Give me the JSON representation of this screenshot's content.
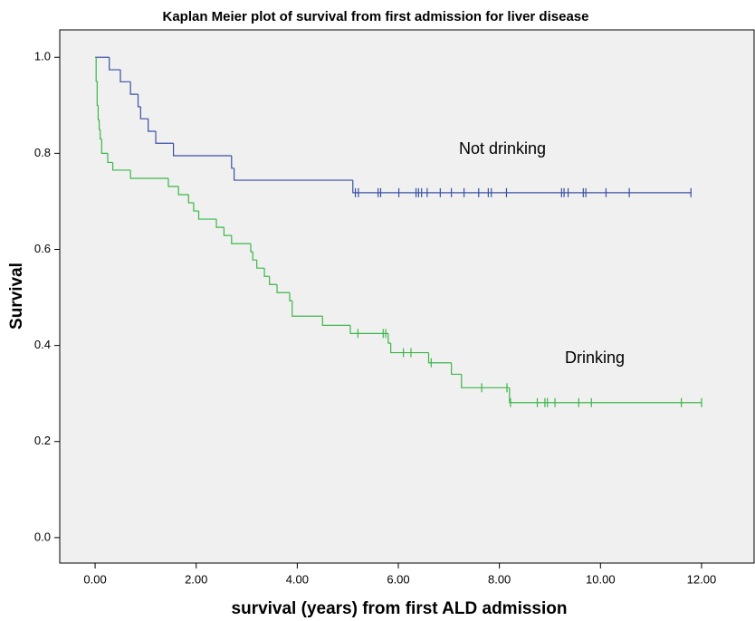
{
  "chart_data": {
    "type": "kaplan-meier",
    "title": "Kaplan Meier plot of survival from first admission for liver disease",
    "x_label": "survival (years) from first ALD admission",
    "y_label": "Survival",
    "xlim": [
      -0.7,
      13.04
    ],
    "ylim": [
      -0.053,
      1.057
    ],
    "xticks": [
      {
        "value": 0,
        "label": "0.00"
      },
      {
        "value": 2,
        "label": "2.00"
      },
      {
        "value": 4,
        "label": "4.00"
      },
      {
        "value": 6,
        "label": "6.00"
      },
      {
        "value": 8,
        "label": "8.00"
      },
      {
        "value": 10,
        "label": "10.00"
      },
      {
        "value": 12,
        "label": "12.00"
      }
    ],
    "yticks": [
      {
        "value": 0,
        "label": "0.0"
      },
      {
        "value": 0.2,
        "label": "0.2"
      },
      {
        "value": 0.4,
        "label": "0.4"
      },
      {
        "value": 0.6,
        "label": "0.6"
      },
      {
        "value": 0.8,
        "label": "0.8"
      },
      {
        "value": 1,
        "label": "1.0"
      }
    ],
    "series": [
      {
        "name": "Not drinking",
        "color": "#3a4fa3",
        "x": [
          0,
          0.28,
          0.5,
          0.7,
          0.85,
          0.9,
          1.05,
          1.2,
          1.55,
          2.7,
          2.75,
          5.1,
          11.8
        ],
        "values": [
          1,
          0.974,
          0.949,
          0.923,
          0.897,
          0.872,
          0.846,
          0.821,
          0.795,
          0.769,
          0.744,
          0.718,
          0.718
        ],
        "censor_x": [
          5.15,
          5.21,
          5.6,
          5.65,
          6.01,
          6.35,
          6.4,
          6.46,
          6.57,
          6.83,
          7.05,
          7.3,
          7.59,
          7.78,
          7.84,
          8.14,
          9.23,
          9.28,
          9.36,
          9.66,
          9.71,
          10.11,
          10.57,
          11.79
        ],
        "censor_values": [
          0.718,
          0.718,
          0.718,
          0.718,
          0.718,
          0.718,
          0.718,
          0.718,
          0.718,
          0.718,
          0.718,
          0.718,
          0.718,
          0.718,
          0.718,
          0.718,
          0.718,
          0.718,
          0.718,
          0.718,
          0.718,
          0.718,
          0.718,
          0.718
        ]
      },
      {
        "name": "Drinking",
        "color": "#3cb648",
        "x": [
          0,
          0.02,
          0.04,
          0.06,
          0.08,
          0.1,
          0.13,
          0.25,
          0.35,
          0.7,
          1.45,
          1.65,
          1.85,
          1.95,
          2.05,
          2.4,
          2.55,
          2.7,
          3.08,
          3.12,
          3.2,
          3.35,
          3.45,
          3.6,
          3.85,
          3.9,
          4.5,
          5.05,
          5.8,
          5.85,
          6.6,
          7.05,
          7.25,
          8.2,
          12.0
        ],
        "values": [
          1,
          0.95,
          0.9,
          0.87,
          0.85,
          0.83,
          0.8,
          0.781,
          0.765,
          0.748,
          0.731,
          0.714,
          0.697,
          0.68,
          0.663,
          0.646,
          0.629,
          0.612,
          0.595,
          0.578,
          0.561,
          0.544,
          0.527,
          0.51,
          0.493,
          0.461,
          0.442,
          0.425,
          0.405,
          0.385,
          0.364,
          0.34,
          0.312,
          0.281,
          0.281
        ],
        "censor_x": [
          5.2,
          5.7,
          5.75,
          6.1,
          6.25,
          6.65,
          7.65,
          8.15,
          8.22,
          8.75,
          8.9,
          8.95,
          9.1,
          9.57,
          9.82,
          11.6,
          12.0
        ],
        "censor_values": [
          0.425,
          0.425,
          0.425,
          0.385,
          0.385,
          0.364,
          0.312,
          0.312,
          0.281,
          0.281,
          0.281,
          0.281,
          0.281,
          0.281,
          0.281,
          0.281,
          0.281
        ]
      }
    ]
  }
}
